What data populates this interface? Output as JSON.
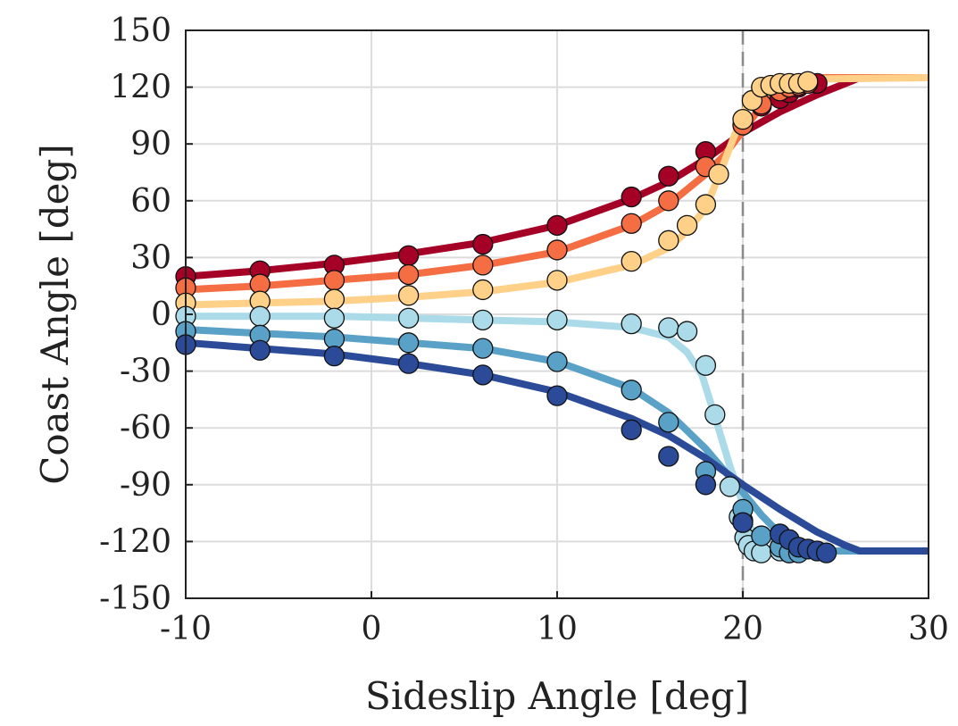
{
  "chart_data": {
    "type": "scatter",
    "title": "",
    "xlabel": "Sideslip Angle [deg]",
    "ylabel": "Coast Angle [deg]",
    "xlim": [
      -10,
      30
    ],
    "ylim": [
      -150,
      150
    ],
    "xticks": [
      -10,
      0,
      10,
      20,
      30
    ],
    "yticks": [
      -150,
      -120,
      -90,
      -60,
      -30,
      0,
      30,
      60,
      90,
      120,
      150
    ],
    "grid": true,
    "reference_line": {
      "x": 20,
      "style": "dashed",
      "color": "#8a8a8a"
    },
    "series": [
      {
        "color": "#a50026",
        "points": [
          [
            -10,
            20
          ],
          [
            -6,
            23
          ],
          [
            -2,
            26
          ],
          [
            2,
            31
          ],
          [
            6,
            37
          ],
          [
            10,
            47
          ],
          [
            14,
            62
          ],
          [
            16,
            73
          ],
          [
            18,
            86
          ],
          [
            20,
            100
          ],
          [
            21,
            110
          ],
          [
            22,
            114
          ],
          [
            22.5,
            117
          ],
          [
            23,
            120
          ],
          [
            23.5,
            122
          ],
          [
            24,
            122
          ]
        ],
        "curve": [
          [
            -10,
            20
          ],
          [
            -6,
            23
          ],
          [
            -2,
            27
          ],
          [
            2,
            32
          ],
          [
            6,
            38
          ],
          [
            10,
            47
          ],
          [
            14,
            61
          ],
          [
            16,
            70
          ],
          [
            18,
            82
          ],
          [
            20,
            96
          ],
          [
            22,
            107
          ],
          [
            24,
            116
          ],
          [
            26.3,
            125
          ],
          [
            30,
            125
          ]
        ]
      },
      {
        "color": "#f46d43",
        "points": [
          [
            -10,
            14
          ],
          [
            -6,
            16
          ],
          [
            -2,
            18
          ],
          [
            2,
            21
          ],
          [
            6,
            26
          ],
          [
            10,
            34
          ],
          [
            14,
            48
          ],
          [
            16,
            60
          ],
          [
            18,
            78
          ],
          [
            20,
            100
          ],
          [
            21,
            111
          ],
          [
            22,
            118
          ],
          [
            22.5,
            120
          ],
          [
            23,
            121
          ],
          [
            23.5,
            122
          ]
        ],
        "curve": [
          [
            -10,
            13
          ],
          [
            -6,
            15
          ],
          [
            -2,
            18
          ],
          [
            2,
            21
          ],
          [
            6,
            26
          ],
          [
            10,
            33
          ],
          [
            14,
            47
          ],
          [
            16,
            58
          ],
          [
            18,
            74
          ],
          [
            19,
            84
          ],
          [
            20,
            97
          ],
          [
            21,
            110
          ],
          [
            22,
            118
          ],
          [
            23,
            122
          ],
          [
            24,
            125
          ],
          [
            30,
            125
          ]
        ]
      },
      {
        "color": "#fed088",
        "points": [
          [
            -10,
            6
          ],
          [
            -6,
            7
          ],
          [
            -2,
            8
          ],
          [
            2,
            10
          ],
          [
            6,
            13
          ],
          [
            10,
            18
          ],
          [
            14,
            28
          ],
          [
            16,
            39
          ],
          [
            17,
            47
          ],
          [
            18,
            58
          ],
          [
            18.7,
            74
          ],
          [
            20,
            103
          ],
          [
            20.5,
            113
          ],
          [
            21,
            120
          ],
          [
            21.5,
            121
          ],
          [
            22,
            122
          ],
          [
            22.5,
            122
          ],
          [
            23,
            122
          ],
          [
            23.5,
            123
          ]
        ],
        "curve": [
          [
            -10,
            5
          ],
          [
            -6,
            6
          ],
          [
            -2,
            7
          ],
          [
            2,
            9
          ],
          [
            6,
            12
          ],
          [
            10,
            17
          ],
          [
            14,
            26
          ],
          [
            16,
            35
          ],
          [
            17,
            44
          ],
          [
            18,
            56
          ],
          [
            18.7,
            73
          ],
          [
            19.3,
            88
          ],
          [
            20,
            106
          ],
          [
            20.7,
            118
          ],
          [
            21.5,
            124
          ],
          [
            30,
            125
          ]
        ]
      },
      {
        "color": "#abdbe9",
        "points": [
          [
            -10,
            -1
          ],
          [
            -6,
            -1
          ],
          [
            -2,
            -2
          ],
          [
            2,
            -2
          ],
          [
            6,
            -3
          ],
          [
            10,
            -3
          ],
          [
            14,
            -5
          ],
          [
            16,
            -7
          ],
          [
            17,
            -9
          ],
          [
            18,
            -27
          ],
          [
            18.5,
            -53
          ],
          [
            19.3,
            -91
          ],
          [
            19.8,
            -107
          ],
          [
            20,
            -109
          ],
          [
            20.1,
            -118
          ],
          [
            20.3,
            -122
          ],
          [
            20.6,
            -125
          ],
          [
            21,
            -126
          ],
          [
            22,
            -125
          ],
          [
            22.5,
            -126
          ]
        ],
        "curve": [
          [
            -10,
            -1
          ],
          [
            -6,
            -1
          ],
          [
            -2,
            -1
          ],
          [
            2,
            -2
          ],
          [
            6,
            -3
          ],
          [
            10,
            -4
          ],
          [
            14,
            -7
          ],
          [
            16,
            -12
          ],
          [
            17,
            -20
          ],
          [
            17.8,
            -32
          ],
          [
            18.5,
            -54
          ],
          [
            19.3,
            -80
          ],
          [
            20,
            -100
          ],
          [
            20.5,
            -115
          ],
          [
            21,
            -122
          ],
          [
            21.5,
            -125
          ],
          [
            30,
            -125
          ]
        ]
      },
      {
        "color": "#5aa1c8",
        "points": [
          [
            -10,
            -9
          ],
          [
            -6,
            -11
          ],
          [
            -2,
            -13
          ],
          [
            2,
            -15
          ],
          [
            6,
            -18
          ],
          [
            10,
            -25
          ],
          [
            14,
            -40
          ],
          [
            16,
            -57
          ],
          [
            18,
            -83
          ],
          [
            20,
            -103
          ],
          [
            21,
            -117
          ],
          [
            22,
            -123
          ],
          [
            22.5,
            -126
          ],
          [
            23,
            -126
          ]
        ],
        "curve": [
          [
            -10,
            -8
          ],
          [
            -6,
            -10
          ],
          [
            -2,
            -12
          ],
          [
            2,
            -15
          ],
          [
            6,
            -18
          ],
          [
            10,
            -25
          ],
          [
            14,
            -39
          ],
          [
            16,
            -52
          ],
          [
            18,
            -71
          ],
          [
            20,
            -94
          ],
          [
            21,
            -106
          ],
          [
            22,
            -116
          ],
          [
            23,
            -122
          ],
          [
            24,
            -125
          ],
          [
            30,
            -125
          ]
        ]
      },
      {
        "color": "#2b4b99",
        "points": [
          [
            -10,
            -16
          ],
          [
            -6,
            -19
          ],
          [
            -2,
            -22
          ],
          [
            2,
            -26
          ],
          [
            6,
            -32
          ],
          [
            10,
            -43
          ],
          [
            14,
            -61
          ],
          [
            16,
            -75
          ],
          [
            18,
            -90
          ],
          [
            20,
            -110
          ],
          [
            22,
            -116
          ],
          [
            22.5,
            -119
          ],
          [
            23,
            -123
          ],
          [
            23.5,
            -124
          ],
          [
            24,
            -125
          ],
          [
            24.5,
            -126
          ]
        ],
        "curve": [
          [
            -10,
            -15
          ],
          [
            -6,
            -18
          ],
          [
            -2,
            -21
          ],
          [
            2,
            -26
          ],
          [
            6,
            -32
          ],
          [
            10,
            -41
          ],
          [
            14,
            -55
          ],
          [
            16,
            -64
          ],
          [
            18,
            -76
          ],
          [
            20,
            -90
          ],
          [
            22,
            -103
          ],
          [
            24,
            -115
          ],
          [
            25.5,
            -122
          ],
          [
            26.3,
            -125
          ],
          [
            30,
            -125
          ]
        ]
      }
    ]
  }
}
